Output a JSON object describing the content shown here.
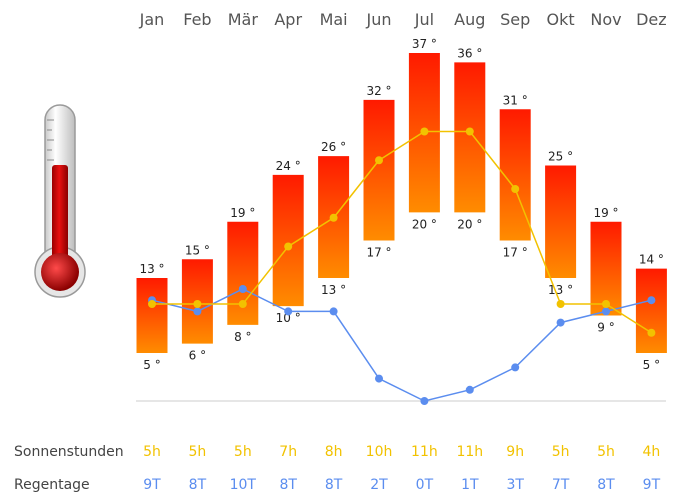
{
  "chart_data": {
    "type": "bar",
    "categories": [
      "Jan",
      "Feb",
      "Mär",
      "Apr",
      "Mai",
      "Jun",
      "Jul",
      "Aug",
      "Sep",
      "Okt",
      "Nov",
      "Dez"
    ],
    "temp_unit": "°",
    "series": [
      {
        "values": [
          13,
          15,
          19,
          24,
          26,
          32,
          37,
          36,
          31,
          25,
          19,
          14
        ]
      },
      {
        "values": [
          5,
          6,
          8,
          10,
          13,
          17,
          20,
          20,
          17,
          13,
          9,
          5
        ]
      }
    ],
    "sunshine": {
      "label": "Sonnenstunden",
      "values": [
        5,
        5,
        5,
        7,
        8,
        10,
        11,
        11,
        9,
        5,
        5,
        4
      ],
      "unit": "h",
      "color": "#f2c200"
    },
    "rain_days": {
      "label": "Regentage",
      "values": [
        9,
        8,
        10,
        8,
        8,
        2,
        0,
        1,
        3,
        7,
        8,
        9
      ],
      "unit": "T",
      "color": "#5b8def"
    },
    "bar_colors": {
      "top": "#ff1a00",
      "bottom": "#ff8c00"
    },
    "grid": false
  }
}
